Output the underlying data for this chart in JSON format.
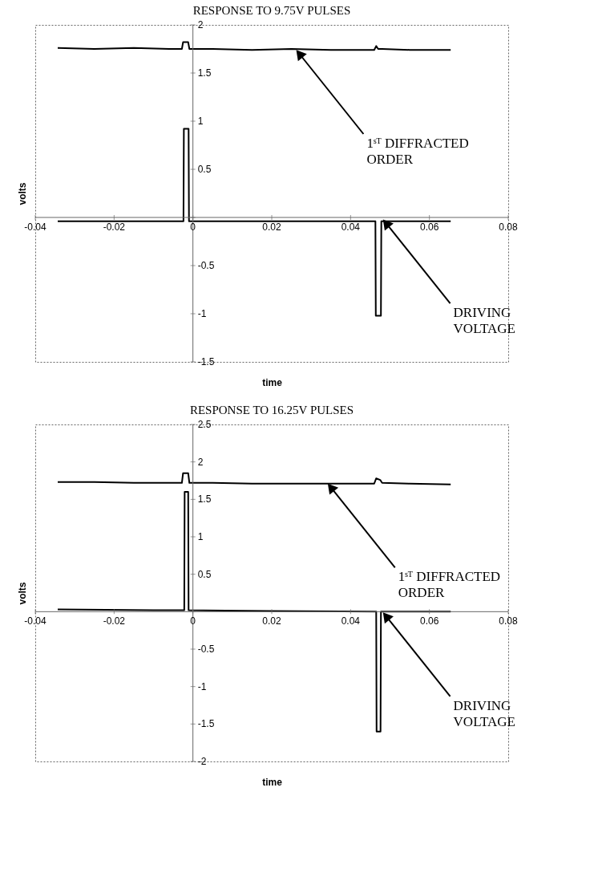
{
  "chart_data": [
    {
      "type": "line",
      "title": "RESPONSE TO 9.75V PULSES",
      "xlabel": "time",
      "ylabel": "volts",
      "xlim": [
        -0.04,
        0.08
      ],
      "xticks": [
        -0.04,
        -0.02,
        0,
        0.02,
        0.04,
        0.06,
        0.08
      ],
      "ylim": [
        -1.5,
        2
      ],
      "yticks": [
        -1.5,
        -1,
        -0.5,
        {
          "value": 0,
          "label": null
        },
        0.5,
        1,
        1.5,
        2
      ],
      "grid": false,
      "legend": false,
      "marker": "none",
      "line_style": "solid",
      "series": [
        {
          "color": "#000000",
          "x": [
            -0.0343,
            -0.025,
            -0.015,
            -0.006,
            -0.0028,
            -0.0025,
            -0.0012,
            -0.0009,
            0.005,
            0.015,
            0.025,
            0.035,
            0.046,
            0.0465,
            0.047,
            0.048,
            0.055,
            0.0654
          ],
          "values": [
            1.76,
            1.75,
            1.76,
            1.75,
            1.75,
            1.82,
            1.82,
            1.75,
            1.75,
            1.74,
            1.75,
            1.74,
            1.74,
            1.78,
            1.75,
            1.75,
            1.74,
            1.74
          ]
        },
        {
          "color": "#000000",
          "x": [
            -0.0343,
            -0.01,
            -0.0024,
            -0.0023,
            -0.0011,
            -0.001,
            0.02,
            0.0463,
            0.0464,
            0.0477,
            0.0478,
            0.0654
          ],
          "values": [
            -0.04,
            -0.04,
            -0.04,
            0.92,
            0.92,
            -0.04,
            -0.04,
            -0.04,
            -1.02,
            -1.02,
            -0.04,
            -0.04
          ]
        }
      ],
      "annotations": [
        {
          "text": "1ˢᵀ DIFFRACTED\nORDER",
          "x": 0.027,
          "y": 1.7
        },
        {
          "text": "DRIVING\nVOLTAGE",
          "x": 0.049,
          "y": -0.06
        }
      ]
    },
    {
      "type": "line",
      "title": "RESPONSE TO 16.25V PULSES",
      "xlabel": "time",
      "ylabel": "volts",
      "xlim": [
        -0.04,
        0.08
      ],
      "xticks": [
        -0.04,
        -0.02,
        0,
        0.02,
        0.04,
        0.06,
        0.08
      ],
      "ylim": [
        -2,
        2.5
      ],
      "yticks": [
        -2,
        -1.5,
        -1,
        -0.5,
        {
          "value": 0,
          "label": null
        },
        0.5,
        1,
        1.5,
        2,
        2.5
      ],
      "grid": false,
      "legend": false,
      "marker": "none",
      "line_style": "solid",
      "series": [
        {
          "color": "#000000",
          "x": [
            -0.0343,
            -0.025,
            -0.015,
            -0.006,
            -0.0028,
            -0.0025,
            -0.0012,
            -0.0009,
            0.005,
            0.015,
            0.025,
            0.035,
            0.046,
            0.0465,
            0.0475,
            0.048,
            0.055,
            0.0654
          ],
          "values": [
            1.73,
            1.73,
            1.72,
            1.72,
            1.72,
            1.85,
            1.85,
            1.72,
            1.72,
            1.71,
            1.71,
            1.71,
            1.71,
            1.78,
            1.76,
            1.72,
            1.71,
            1.7
          ]
        },
        {
          "color": "#000000",
          "x": [
            -0.0343,
            -0.01,
            -0.0022,
            -0.0021,
            -0.0012,
            -0.0011,
            0.02,
            0.0465,
            0.0466,
            0.0476,
            0.0477,
            0.0654
          ],
          "values": [
            0.03,
            0.02,
            0.02,
            1.6,
            1.6,
            0.02,
            0.01,
            0.0,
            -1.6,
            -1.6,
            0.0,
            0.0
          ]
        }
      ],
      "annotations": [
        {
          "text": "1ˢᵀ DIFFRACTED\nORDER",
          "x": 0.035,
          "y": 1.66
        },
        {
          "text": "DRIVING\nVOLTAGE",
          "x": 0.049,
          "y": -0.06
        }
      ]
    }
  ]
}
